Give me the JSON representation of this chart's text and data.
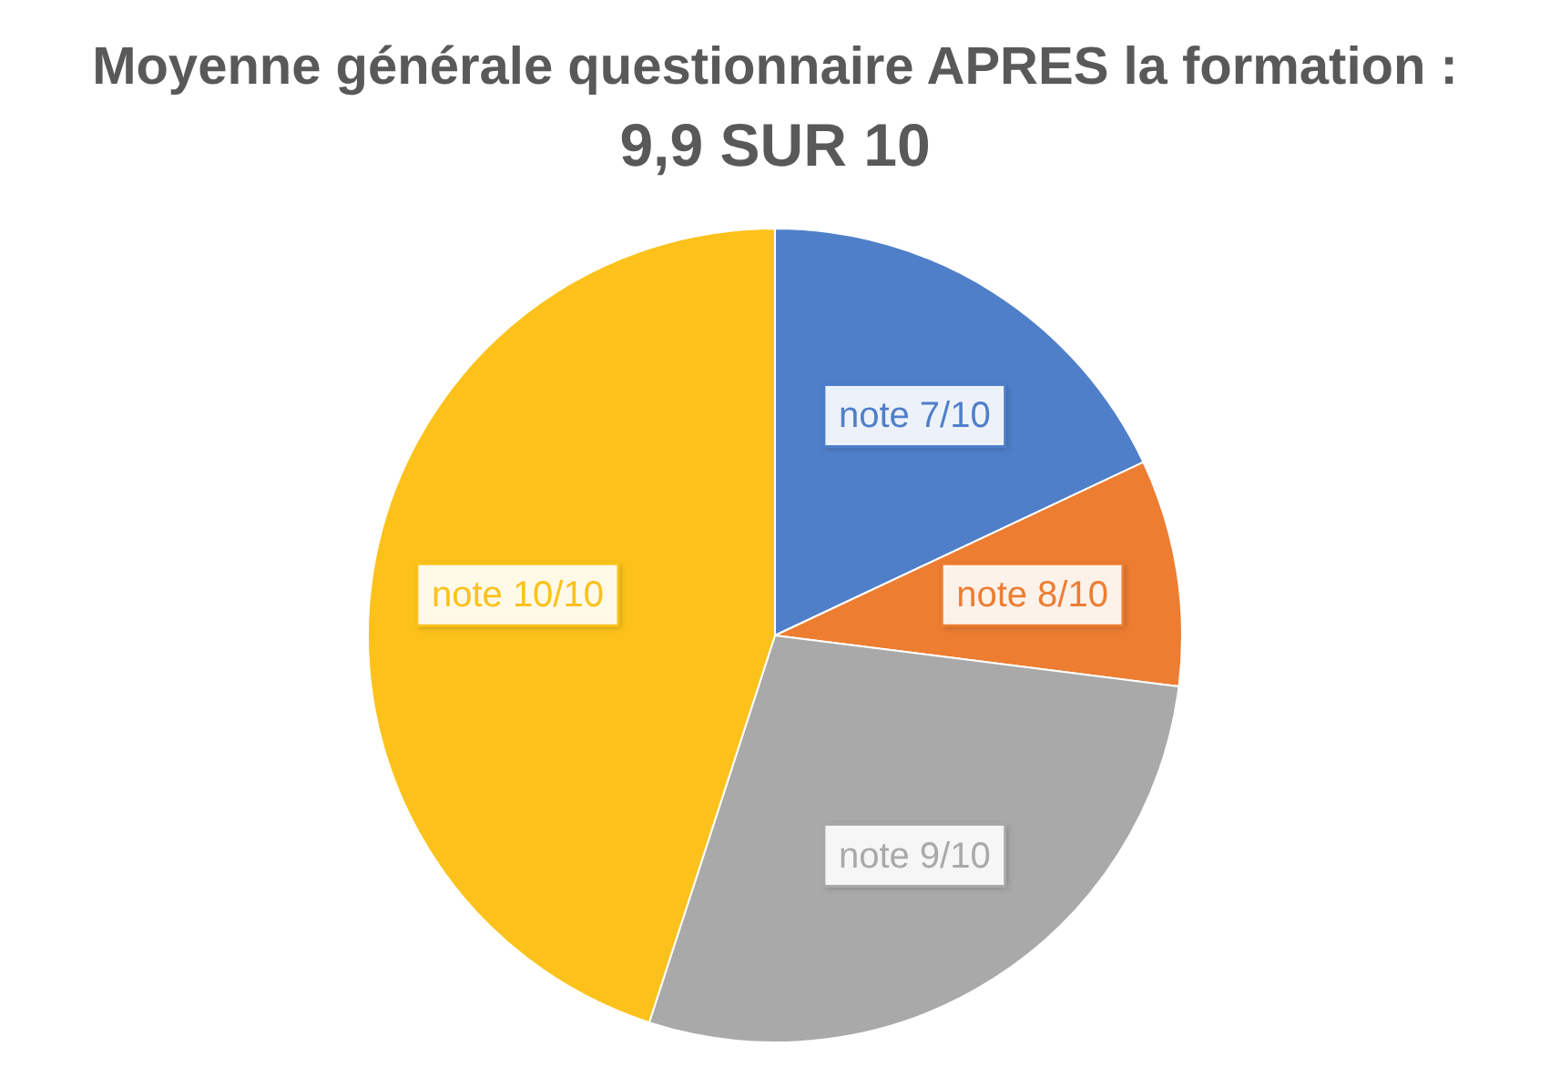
{
  "chart_data": {
    "type": "pie",
    "title": "Moyenne générale questionnaire APRES la formation :",
    "subtitle": "9,9 SUR 10",
    "categories": [
      "note 7/10",
      "note 8/10",
      "note 9/10",
      "note 10/10"
    ],
    "values": [
      18,
      9,
      28,
      45
    ],
    "colors": [
      "#4f7fc9",
      "#ed7d31",
      "#a9a9a9",
      "#fcc21b"
    ]
  }
}
